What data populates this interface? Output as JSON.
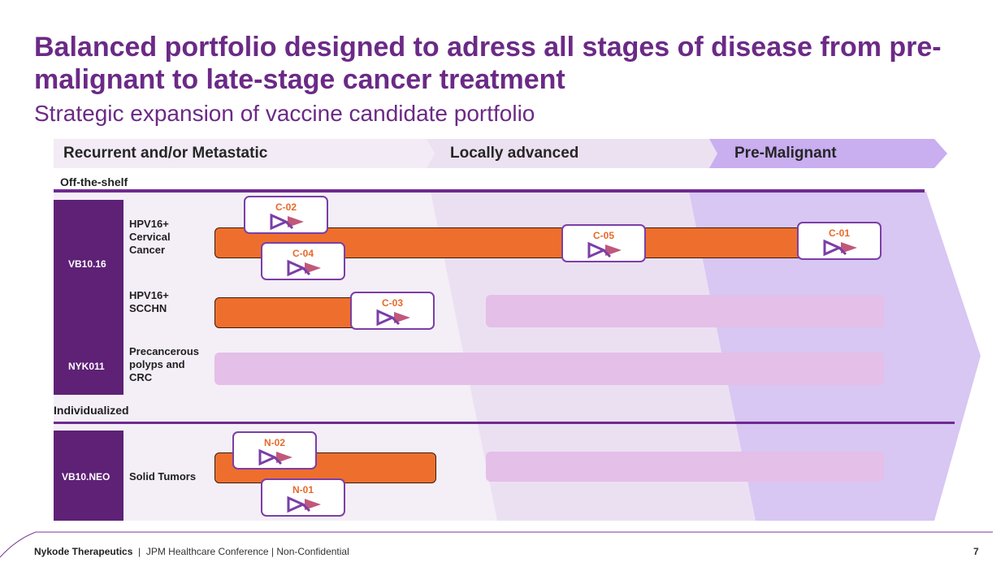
{
  "header": {
    "title": "Balanced portfolio designed to adress all stages of disease from pre-malignant to late-stage cancer treatment",
    "subtitle": "Strategic expansion of vaccine candidate portfolio"
  },
  "stages": [
    {
      "label": "Recurrent and/or Metastatic"
    },
    {
      "label": "Locally advanced"
    },
    {
      "label": "Pre-Malignant"
    }
  ],
  "sections": {
    "off_the_shelf": "Off-the-shelf",
    "individualized": "Individualized"
  },
  "products": [
    {
      "name": "VB10.16"
    },
    {
      "name": "NYK011"
    },
    {
      "name": "VB10.NEO"
    }
  ],
  "indications": [
    {
      "label": "HPV16+ Cervical Cancer"
    },
    {
      "label": "HPV16+ SCCHN"
    },
    {
      "label": "Precancerous polyps and CRC"
    },
    {
      "label": "Solid Tumors"
    }
  ],
  "trials": [
    "C-02",
    "C-04",
    "C-05",
    "C-01",
    "C-03",
    "N-02",
    "N-01"
  ],
  "footer": {
    "company": "Nykode Therapeutics",
    "separator": "|",
    "text": "JPM Healthcare Conference | Non-Confidential",
    "page": "7"
  },
  "colors": {
    "brand_purple": "#6b2a86",
    "product_box": "#5e2176",
    "bar_orange": "#ee6f2d",
    "bar_lilac": "#e4bfe8",
    "badge_code": "#e8692a"
  },
  "icons": [
    "nykode-logo-icon"
  ]
}
